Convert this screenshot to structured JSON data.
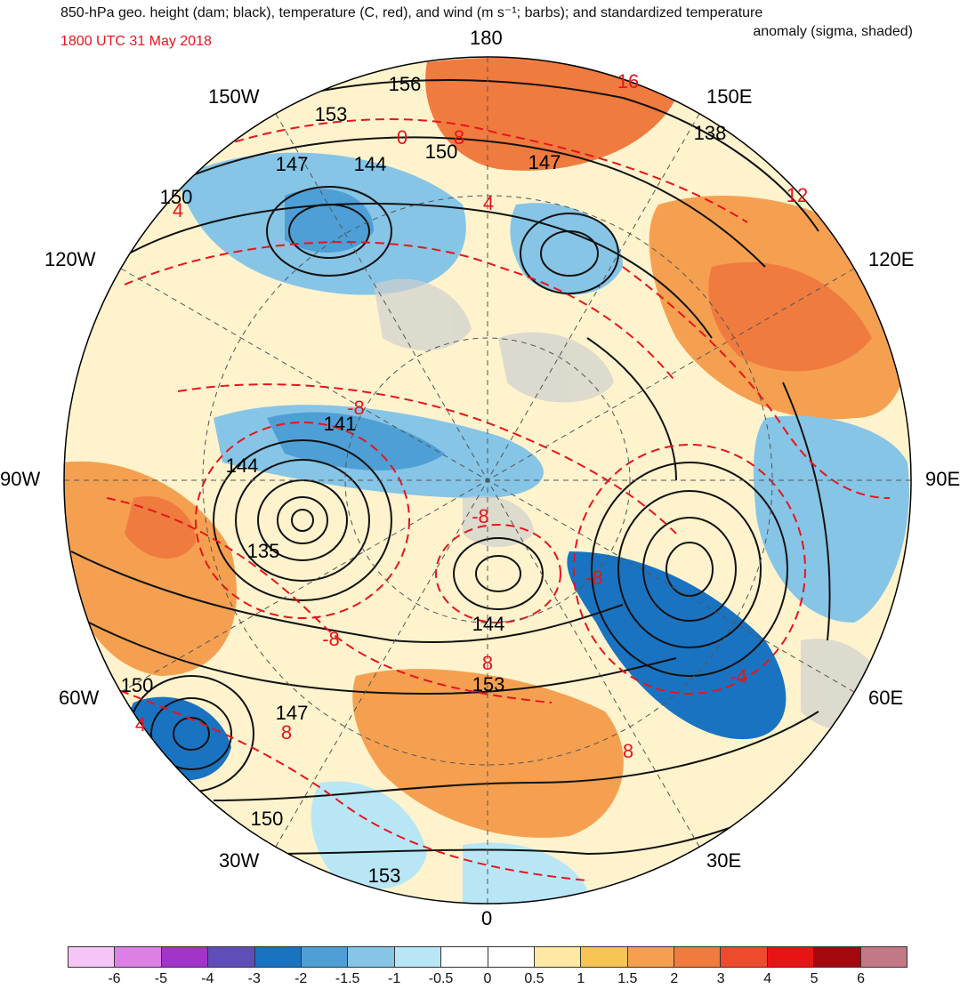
{
  "title": {
    "line1": "850-hPa geo. height (dam; black), temperature (C, red), and wind (m s⁻¹; barbs); and standardized temperature",
    "line2": "anomaly (sigma, shaded)",
    "valid_time": "1800 UTC 31 May 2018"
  },
  "longitudes": {
    "top": "180",
    "bottom": "0",
    "left": "90W",
    "right": "90E",
    "ul1": "150W",
    "ul2": "120W",
    "ur1": "150E",
    "ur2": "120E",
    "ll1": "60W",
    "ll2": "30W",
    "lr1": "60E",
    "lr2": "30E"
  },
  "height_labels": [
    "156",
    "153",
    "150",
    "147",
    "144",
    "150",
    "147",
    "138",
    "141",
    "144",
    "135",
    "144",
    "153",
    "150",
    "147",
    "150",
    "153"
  ],
  "temp_labels": [
    "16",
    "0",
    "8",
    "4",
    "4",
    "12",
    "-8",
    "-8",
    "-8",
    "-8",
    "8",
    "-4",
    "8",
    "4",
    "8"
  ],
  "colorbar": {
    "colors": [
      "#f5c6f5",
      "#dd80e6",
      "#a334c8",
      "#5f4db8",
      "#1a73c0",
      "#4d9fd6",
      "#86c5e6",
      "#b8e6f5",
      "#ffffff",
      "#ffffff",
      "#fde9a4",
      "#f8c456",
      "#f5a050",
      "#f07b3f",
      "#ee4a2c",
      "#e81413",
      "#a3080f",
      "#c27985"
    ],
    "labels": [
      "-6",
      "-5",
      "-4",
      "-3",
      "-2",
      "-1.5",
      "-1",
      "-0.5",
      "0",
      "0.5",
      "1",
      "1.5",
      "2",
      "3",
      "4",
      "5",
      "6"
    ]
  }
}
